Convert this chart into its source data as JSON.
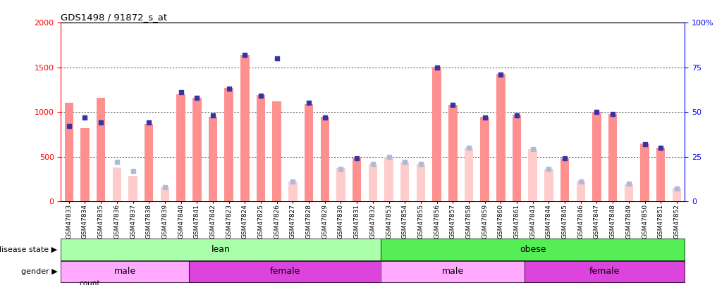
{
  "title": "GDS1498 / 91872_s_at",
  "samples": [
    "GSM47833",
    "GSM47834",
    "GSM47835",
    "GSM47836",
    "GSM47837",
    "GSM47838",
    "GSM47839",
    "GSM47840",
    "GSM47841",
    "GSM47842",
    "GSM47823",
    "GSM47824",
    "GSM47825",
    "GSM47826",
    "GSM47827",
    "GSM47828",
    "GSM47829",
    "GSM47830",
    "GSM47831",
    "GSM47832",
    "GSM47853",
    "GSM47854",
    "GSM47855",
    "GSM47856",
    "GSM47857",
    "GSM47858",
    "GSM47859",
    "GSM47860",
    "GSM47861",
    "GSM47843",
    "GSM47844",
    "GSM47845",
    "GSM47846",
    "GSM47847",
    "GSM47848",
    "GSM47849",
    "GSM47850",
    "GSM47851",
    "GSM47852"
  ],
  "bar_values": [
    1100,
    820,
    1160,
    380,
    280,
    870,
    160,
    1200,
    1160,
    950,
    1270,
    1640,
    1190,
    1120,
    220,
    1090,
    950,
    370,
    490,
    420,
    500,
    440,
    420,
    1510,
    1080,
    600,
    950,
    1430,
    970,
    580,
    360,
    480,
    230,
    1000,
    980,
    200,
    650,
    600,
    150
  ],
  "bar_absent": [
    false,
    false,
    false,
    true,
    true,
    false,
    true,
    false,
    false,
    false,
    false,
    false,
    false,
    false,
    true,
    false,
    false,
    true,
    false,
    true,
    true,
    true,
    true,
    false,
    false,
    true,
    false,
    false,
    false,
    true,
    true,
    false,
    true,
    false,
    false,
    true,
    false,
    false,
    true
  ],
  "rank_values": [
    42,
    47,
    44,
    22,
    17,
    44,
    8,
    61,
    58,
    48,
    63,
    82,
    59,
    80,
    11,
    55,
    47,
    18,
    24,
    21,
    25,
    22,
    21,
    75,
    54,
    30,
    47,
    71,
    48,
    29,
    18,
    24,
    11,
    50,
    49,
    10,
    32,
    30,
    7
  ],
  "ylim_left": [
    0,
    2000
  ],
  "yticks_left": [
    0,
    500,
    1000,
    1500,
    2000
  ],
  "yticks_right": [
    0,
    25,
    50,
    75,
    100
  ],
  "color_bar_present": "#FF9090",
  "color_bar_absent": "#FFCCCC",
  "color_rank_present": "#3333AA",
  "color_rank_absent": "#AABBDD",
  "color_lean": "#AAFFAA",
  "color_obese": "#55EE55",
  "color_lean_dark": "#66CC66",
  "color_male_light": "#FFAAFF",
  "color_female_dark": "#DD44DD",
  "bar_width": 0.55
}
